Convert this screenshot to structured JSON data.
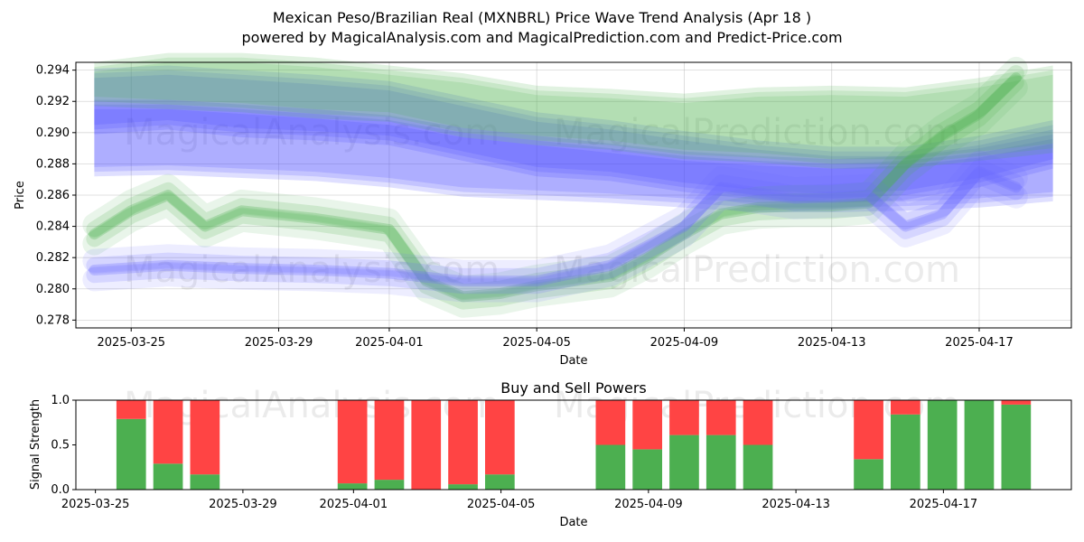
{
  "figure": {
    "title_line1": "Mexican Peso/Brazilian Real (MXNBRL) Price Wave Trend Analysis (Apr 18 )",
    "title_line2": "powered by MagicalAnalysis.com and MagicalPrediction.com and Predict-Price.com",
    "watermark_left": "MagicalAnalysis.com",
    "watermark_right": "MagicalPrediction.com"
  },
  "chart_data": [
    {
      "type": "area",
      "title": "",
      "xlabel": "Date",
      "ylabel": "Price",
      "ylim": [
        0.2775,
        0.2945
      ],
      "xlim": [
        "2025-03-23T12:00",
        "2025-04-19T12:00"
      ],
      "yticks": [
        0.278,
        0.28,
        0.282,
        0.284,
        0.286,
        0.288,
        0.29,
        0.292,
        0.294
      ],
      "ytick_labels": [
        "0.278",
        "0.280",
        "0.282",
        "0.284",
        "0.286",
        "0.288",
        "0.290",
        "0.292",
        "0.294"
      ],
      "xticks": [
        "2025-03-25",
        "2025-03-29",
        "2025-04-01",
        "2025-04-05",
        "2025-04-09",
        "2025-04-13",
        "2025-04-17"
      ],
      "grid": true,
      "colors": {
        "green": "#4caf50",
        "blue": "#4040ff",
        "gray_blue": "#6a8fa8"
      },
      "bands": [
        {
          "name": "upper-blue",
          "color": "#4040ff",
          "x": [
            "2025-03-24",
            "2025-03-26",
            "2025-03-28",
            "2025-03-30",
            "2025-04-01",
            "2025-04-03",
            "2025-04-05",
            "2025-04-07",
            "2025-04-09",
            "2025-04-11",
            "2025-04-13",
            "2025-04-15",
            "2025-04-17",
            "2025-04-19"
          ],
          "upper": [
            0.2938,
            0.294,
            0.2937,
            0.2934,
            0.293,
            0.292,
            0.291,
            0.2905,
            0.2898,
            0.2892,
            0.2888,
            0.2888,
            0.2895,
            0.2905
          ],
          "lower": [
            0.2902,
            0.2905,
            0.29,
            0.2898,
            0.2895,
            0.2885,
            0.2875,
            0.2872,
            0.2865,
            0.286,
            0.2858,
            0.286,
            0.2868,
            0.288
          ]
        },
        {
          "name": "lower-blue",
          "color": "#4040ff",
          "x": [
            "2025-03-24",
            "2025-03-26",
            "2025-03-28",
            "2025-03-30",
            "2025-04-01",
            "2025-04-03",
            "2025-04-05",
            "2025-04-07",
            "2025-04-09",
            "2025-04-11",
            "2025-04-13",
            "2025-04-15",
            "2025-04-17",
            "2025-04-19"
          ],
          "upper": [
            0.2918,
            0.2918,
            0.2915,
            0.2912,
            0.2908,
            0.29,
            0.2895,
            0.289,
            0.2885,
            0.2882,
            0.288,
            0.2882,
            0.2887,
            0.2896
          ],
          "lower": [
            0.2875,
            0.2876,
            0.2874,
            0.2872,
            0.2868,
            0.2862,
            0.286,
            0.2858,
            0.2855,
            0.2852,
            0.2852,
            0.2853,
            0.2855,
            0.2859
          ]
        },
        {
          "name": "upper-green",
          "color": "#4caf50",
          "x": [
            "2025-03-24",
            "2025-03-26",
            "2025-03-28",
            "2025-03-30",
            "2025-04-01",
            "2025-04-03",
            "2025-04-05",
            "2025-04-07",
            "2025-04-09",
            "2025-04-11",
            "2025-04-13",
            "2025-04-15",
            "2025-04-17",
            "2025-04-19"
          ],
          "upper": [
            0.2942,
            0.2948,
            0.2948,
            0.2945,
            0.294,
            0.2935,
            0.2927,
            0.2925,
            0.2922,
            0.2926,
            0.2927,
            0.2926,
            0.2932,
            0.294
          ],
          "lower": [
            0.292,
            0.2918,
            0.2916,
            0.2912,
            0.291,
            0.29,
            0.2895,
            0.2892,
            0.2886,
            0.2884,
            0.288,
            0.288,
            0.2885,
            0.289
          ]
        }
      ],
      "waves": [
        {
          "name": "green-wave",
          "color": "#4caf50",
          "x": [
            "2025-03-24",
            "2025-03-25",
            "2025-03-26",
            "2025-03-27",
            "2025-03-28",
            "2025-03-30",
            "2025-04-01",
            "2025-04-02",
            "2025-04-03",
            "2025-04-04",
            "2025-04-05",
            "2025-04-07",
            "2025-04-08",
            "2025-04-09",
            "2025-04-10",
            "2025-04-11",
            "2025-04-12",
            "2025-04-13",
            "2025-04-14",
            "2025-04-15",
            "2025-04-16",
            "2025-04-17",
            "2025-04-18"
          ],
          "values": [
            0.2835,
            0.285,
            0.286,
            0.284,
            0.285,
            0.2845,
            0.2838,
            0.2805,
            0.2795,
            0.2797,
            0.2802,
            0.2808,
            0.282,
            0.2835,
            0.2848,
            0.2852,
            0.2853,
            0.2853,
            0.2855,
            0.288,
            0.2898,
            0.2912,
            0.2935
          ]
        },
        {
          "name": "blue-wave",
          "color": "#6a6aff",
          "x": [
            "2025-03-24",
            "2025-03-26",
            "2025-03-28",
            "2025-03-30",
            "2025-04-01",
            "2025-04-03",
            "2025-04-05",
            "2025-04-07",
            "2025-04-09",
            "2025-04-10",
            "2025-04-12",
            "2025-04-14",
            "2025-04-15",
            "2025-04-16",
            "2025-04-17",
            "2025-04-18"
          ],
          "values": [
            0.2812,
            0.2815,
            0.2813,
            0.2812,
            0.281,
            0.2805,
            0.2805,
            0.2815,
            0.284,
            0.2865,
            0.2858,
            0.286,
            0.284,
            0.2848,
            0.2875,
            0.2865
          ]
        }
      ]
    },
    {
      "type": "bar",
      "title": "Buy and Sell Powers",
      "xlabel": "Date",
      "ylabel": "Signal Strength",
      "ylim": [
        0,
        1
      ],
      "yticks": [
        0,
        0.5,
        1
      ],
      "ytick_labels": [
        "0.0",
        "0.5",
        "1.0"
      ],
      "xticks": [
        "2025-03-25",
        "2025-03-29",
        "2025-04-01",
        "2025-04-05",
        "2025-04-09",
        "2025-04-13",
        "2025-04-17"
      ],
      "colors": {
        "buy": "#4caf50",
        "sell": "#ff4444"
      },
      "categories": [
        "2025-03-25",
        "2025-03-26",
        "2025-03-27",
        "2025-03-31",
        "2025-04-01",
        "2025-04-02",
        "2025-04-03",
        "2025-04-04",
        "2025-04-07",
        "2025-04-08",
        "2025-04-09",
        "2025-04-10",
        "2025-04-11",
        "2025-04-14",
        "2025-04-15",
        "2025-04-16",
        "2025-04-17",
        "2025-04-18"
      ],
      "series": [
        {
          "values": [
            0.79,
            0.29,
            0.17,
            0.07,
            0.11,
            0.0,
            0.06,
            0.17,
            0.5,
            0.45,
            0.61,
            0.61,
            0.5,
            0.34,
            0.84,
            1.0,
            1.0,
            0.95
          ]
        },
        {
          "values": [
            0.21,
            0.71,
            0.83,
            0.93,
            0.89,
            1.0,
            0.94,
            0.83,
            0.5,
            0.55,
            0.39,
            0.39,
            0.5,
            0.66,
            0.16,
            0.0,
            0.0,
            0.05
          ]
        }
      ]
    }
  ]
}
